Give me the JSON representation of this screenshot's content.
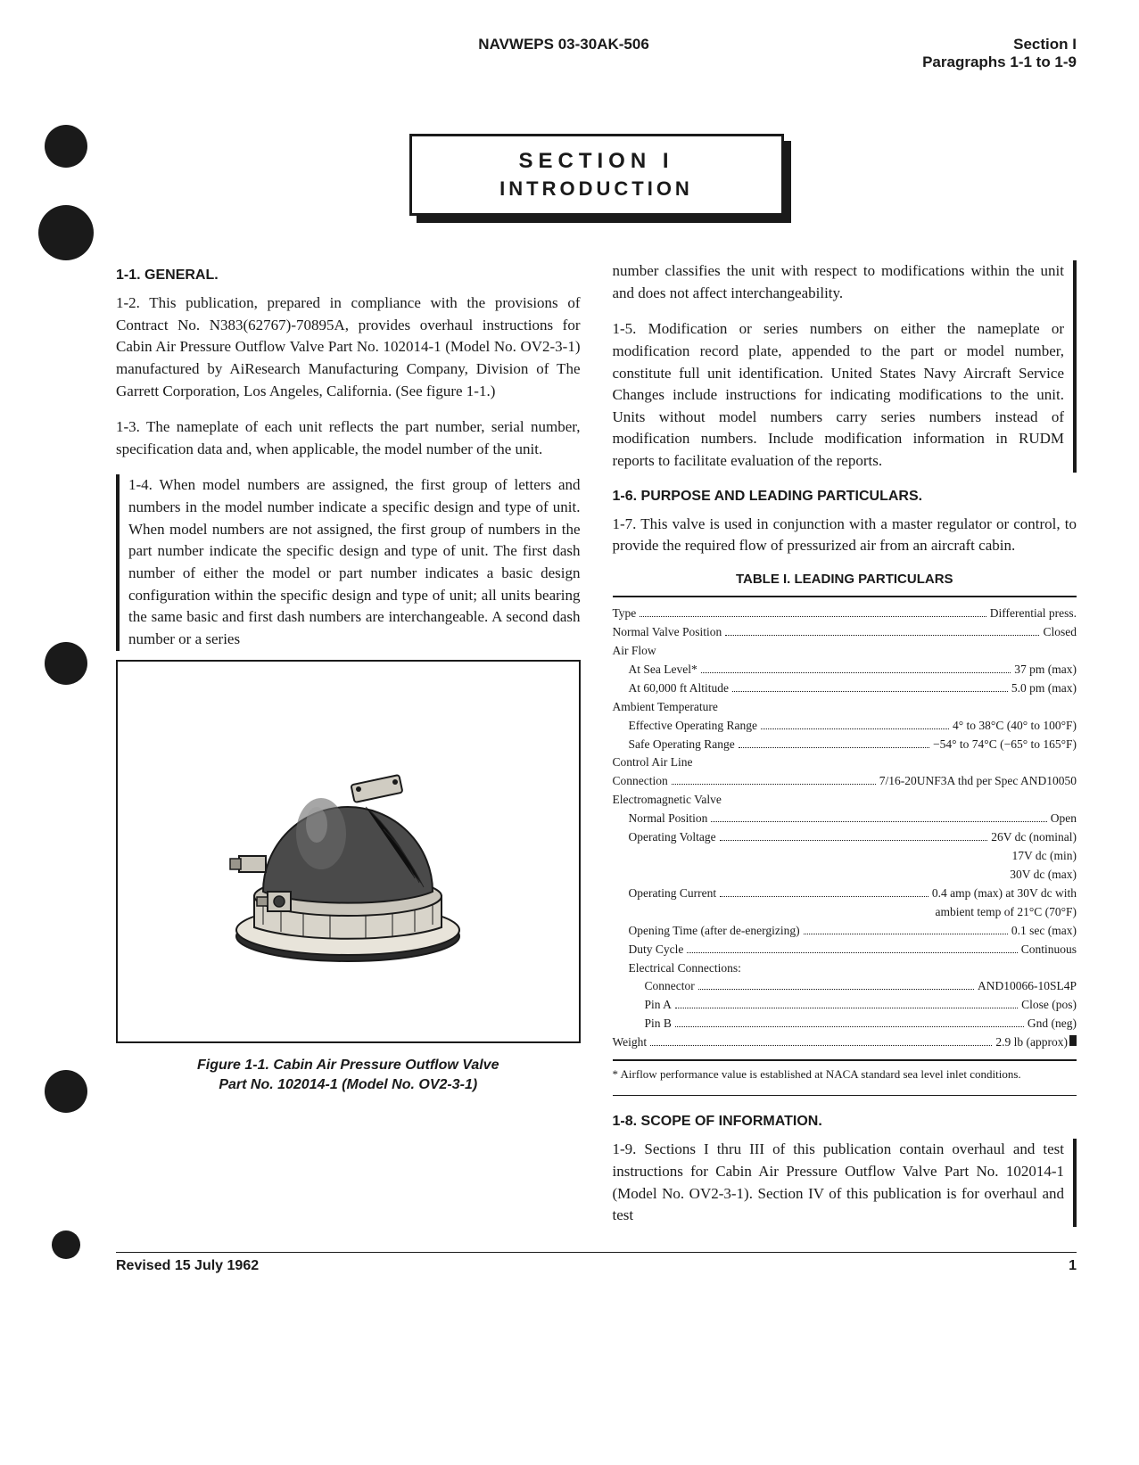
{
  "header": {
    "doc_number": "NAVWEPS 03-30AK-506",
    "section_label": "Section I",
    "para_range": "Paragraphs 1-1 to 1-9"
  },
  "section_title": {
    "line1": "SECTION I",
    "line2": "INTRODUCTION"
  },
  "left_col": {
    "h_general": "1-1. GENERAL.",
    "p_1_2": "1-2. This publication, prepared in compliance with the provisions of Contract No. N383(62767)-70895A, provides overhaul instructions for Cabin Air Pressure Outflow Valve Part No. 102014-1 (Model No. OV2-3-1) manufactured by AiResearch Manufacturing Company, Division of The Garrett Corporation, Los Angeles, California. (See figure 1-1.)",
    "p_1_3": "1-3. The nameplate of each unit reflects the part number, serial number, specification data and, when applicable, the model number of the unit.",
    "p_1_4": "1-4. When model numbers are assigned, the first group of letters and numbers in the model number indicate a specific design and type of unit. When model numbers are not assigned, the first group of numbers in the part number indicate the specific design and type of unit. The first dash number of either the model or part number indicates a basic design configuration within the specific design and type of unit; all units bearing the same basic and first dash numbers are interchangeable. A second dash number or a series",
    "figure_caption_l1": "Figure 1-1. Cabin Air Pressure Outflow Valve",
    "figure_caption_l2": "Part No. 102014-1 (Model No. OV2-3-1)"
  },
  "right_col": {
    "p_cont": "number classifies the unit with respect to modifications within the unit and does not affect interchangeability.",
    "p_1_5": "1-5. Modification or series numbers on either the nameplate or modification record plate, appended to the part or model number, constitute full unit identification. United States Navy Aircraft Service Changes include instructions for indicating modifications to the unit. Units without model numbers carry series numbers instead of modification numbers. Include modification information in RUDM reports to facilitate evaluation of the reports.",
    "h_purpose": "1-6. PURPOSE AND LEADING PARTICULARS.",
    "p_1_7": "1-7. This valve is used in conjunction with a master regulator or control, to provide the required flow of pressurized air from an aircraft cabin.",
    "table_title": "TABLE I.   LEADING PARTICULARS",
    "table": {
      "rows": [
        {
          "label": "Type",
          "value": "Differential press.",
          "indent": 0
        },
        {
          "label": "Normal Valve Position",
          "value": "Closed",
          "indent": 0
        },
        {
          "label": "Air Flow",
          "value": "",
          "indent": 0,
          "nodots": true
        },
        {
          "label": "At Sea Level*",
          "value": "37 pm (max)",
          "indent": 1
        },
        {
          "label": "At 60,000 ft Altitude",
          "value": "5.0 pm (max)",
          "indent": 1
        },
        {
          "label": "Ambient Temperature",
          "value": "",
          "indent": 0,
          "nodots": true
        },
        {
          "label": "Effective Operating Range",
          "value": "4° to 38°C (40° to 100°F)",
          "indent": 1
        },
        {
          "label": "Safe Operating Range",
          "value": "−54° to 74°C (−65° to 165°F)",
          "indent": 1
        },
        {
          "label": "Control Air Line",
          "value": "",
          "indent": 0,
          "nodots": true
        },
        {
          "label": "Connection",
          "value": "7/16-20UNF3A thd per Spec AND10050",
          "indent": 0
        },
        {
          "label": "Electromagnetic Valve",
          "value": "",
          "indent": 0,
          "nodots": true
        },
        {
          "label": "Normal Position",
          "value": "Open",
          "indent": 1
        },
        {
          "label": "Operating Voltage",
          "value": "26V dc (nominal)",
          "indent": 1
        },
        {
          "label": "",
          "value": "17V dc (min)",
          "indent": 1,
          "rightonly": true
        },
        {
          "label": "",
          "value": "30V dc (max)",
          "indent": 1,
          "rightonly": true
        },
        {
          "label": "Operating Current",
          "value": "0.4 amp (max) at 30V dc with",
          "indent": 1
        },
        {
          "label": "",
          "value": "ambient temp of 21°C (70°F)",
          "indent": 1,
          "rightonly": true
        },
        {
          "label": "Opening Time (after de-energizing)",
          "value": "0.1 sec (max)",
          "indent": 1
        },
        {
          "label": "Duty Cycle",
          "value": "Continuous",
          "indent": 1
        },
        {
          "label": "Electrical Connections:",
          "value": "",
          "indent": 1,
          "nodots": true
        },
        {
          "label": "Connector",
          "value": "AND10066-10SL4P",
          "indent": 2
        },
        {
          "label": "Pin A",
          "value": "Close (pos)",
          "indent": 2
        },
        {
          "label": "Pin B",
          "value": "Gnd (neg)",
          "indent": 2
        },
        {
          "label": "Weight",
          "value": "2.9 lb (approx)",
          "indent": 0,
          "endmark": true
        }
      ],
      "note": "* Airflow performance value is established at NACA standard sea level inlet conditions."
    },
    "h_scope": "1-8. SCOPE OF INFORMATION.",
    "p_1_9": "1-9. Sections I thru III of this publication contain overhaul and test instructions for Cabin Air Pressure Outflow Valve Part No. 102014-1 (Model No. OV2-3-1). Section IV of this publication is for overhaul and test"
  },
  "footer": {
    "revised": "Revised 15 July 1962",
    "page": "1"
  },
  "figure_svg": {
    "stroke": "#1a1a1a",
    "fill_light": "#f0ede6",
    "fill_dark": "#3a3a3a"
  }
}
